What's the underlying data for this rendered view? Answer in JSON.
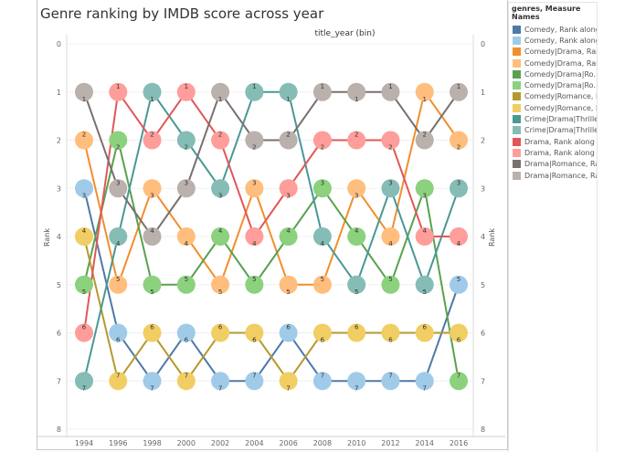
{
  "chart_data": {
    "type": "line",
    "title": "Genre ranking by IMDB score across year",
    "xlabel": "title_year (bin)",
    "ylabel": "Rank",
    "ylim": [
      0,
      8
    ],
    "y_reversed": true,
    "y_ticks": [
      0,
      1,
      2,
      3,
      4,
      5,
      6,
      7,
      8
    ],
    "x": [
      "1994",
      "1996",
      "1998",
      "2000",
      "2002",
      "2004",
      "2006",
      "2008",
      "2010",
      "2012",
      "2014",
      "2016"
    ],
    "legend_title": "genres, Measure Names",
    "legend_placement": "right",
    "series": [
      {
        "genre": "Comedy",
        "line_color": "#4e79a7",
        "dot_color": "#a0cbe8",
        "values": [
          3,
          6,
          7,
          6,
          7,
          7,
          6,
          7,
          7,
          7,
          7,
          5
        ]
      },
      {
        "genre": "Comedy|Drama",
        "line_color": "#f28e2b",
        "dot_color": "#ffbe7d",
        "values": [
          2,
          5,
          3,
          4,
          5,
          3,
          5,
          5,
          3,
          4,
          1,
          2
        ]
      },
      {
        "genre": "Comedy|Drama|Romance",
        "line_color": "#59a14f",
        "dot_color": "#8cd17d",
        "values": [
          5,
          2,
          5,
          5,
          4,
          5,
          4,
          3,
          4,
          5,
          3,
          7
        ]
      },
      {
        "genre": "Comedy|Romance",
        "line_color": "#b6992d",
        "dot_color": "#f1ce63",
        "values": [
          4,
          7,
          6,
          7,
          6,
          6,
          7,
          6,
          6,
          6,
          6,
          6
        ]
      },
      {
        "genre": "Crime|Drama|Thriller",
        "line_color": "#499894",
        "dot_color": "#86bcb6",
        "values": [
          7,
          4,
          1,
          2,
          3,
          1,
          1,
          4,
          5,
          3,
          5,
          3
        ]
      },
      {
        "genre": "Drama",
        "line_color": "#e15759",
        "dot_color": "#ff9d9a",
        "values": [
          6,
          1,
          2,
          1,
          2,
          4,
          3,
          2,
          2,
          2,
          4,
          4
        ]
      },
      {
        "genre": "Drama|Romance",
        "line_color": "#79706e",
        "dot_color": "#bab0ac",
        "values": [
          1,
          3,
          4,
          3,
          1,
          2,
          2,
          1,
          1,
          1,
          2,
          1
        ]
      }
    ],
    "legend": [
      {
        "label": "Comedy, Rank along ..",
        "color": "#4e79a7"
      },
      {
        "label": "Comedy, Rank along ..",
        "color": "#a0cbe8"
      },
      {
        "label": "Comedy|Drama, Ran..",
        "color": "#f28e2b"
      },
      {
        "label": "Comedy|Drama, Ran..",
        "color": "#ffbe7d"
      },
      {
        "label": "Comedy|Drama|Ro..",
        "color": "#59a14f"
      },
      {
        "label": "Comedy|Drama|Ro..",
        "color": "#8cd17d"
      },
      {
        "label": "Comedy|Romance, R..",
        "color": "#b6992d"
      },
      {
        "label": "Comedy|Romance, R..",
        "color": "#f1ce63"
      },
      {
        "label": "Crime|Drama|Thrille..",
        "color": "#499894"
      },
      {
        "label": "Crime|Drama|Thrille..",
        "color": "#86bcb6"
      },
      {
        "label": "Drama, Rank along t..",
        "color": "#e15759"
      },
      {
        "label": "Drama, Rank along t..",
        "color": "#ff9d9a"
      },
      {
        "label": "Drama|Romance, Ra..",
        "color": "#79706e"
      },
      {
        "label": "Drama|Romance, Ra..",
        "color": "#bab0ac"
      }
    ]
  }
}
